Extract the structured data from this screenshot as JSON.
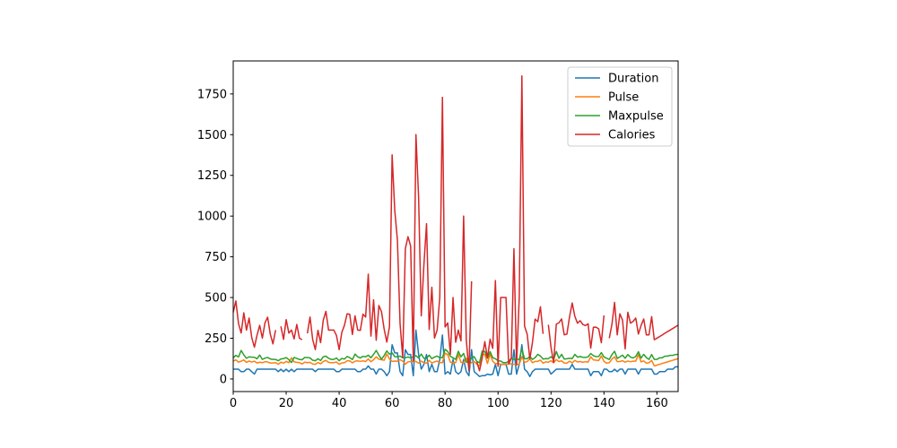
{
  "chart_data": {
    "type": "line",
    "title": "",
    "xlabel": "",
    "ylabel": "",
    "xlim": [
      0,
      168
    ],
    "ylim": [
      -77.3,
      1952.7
    ],
    "xticks": [
      0,
      20,
      40,
      60,
      80,
      100,
      120,
      140,
      160
    ],
    "yticks": [
      0,
      250,
      500,
      750,
      1000,
      1250,
      1500,
      1750
    ],
    "grid": false,
    "legend_placement": "upper-right",
    "series": [
      {
        "name": "Duration",
        "color": "#1f77b4",
        "values": [
          60,
          60,
          60,
          45,
          45,
          60,
          60,
          45,
          30,
          60,
          60,
          60,
          60,
          60,
          60,
          60,
          60,
          45,
          60,
          45,
          60,
          45,
          60,
          45,
          60,
          60,
          60,
          60,
          60,
          60,
          60,
          45,
          60,
          60,
          60,
          60,
          60,
          60,
          60,
          45,
          45,
          60,
          60,
          60,
          60,
          60,
          60,
          45,
          45,
          60,
          60,
          80,
          60,
          60,
          30,
          60,
          60,
          45,
          20,
          45,
          210,
          160,
          160,
          45,
          20,
          180,
          150,
          150,
          20,
          300,
          150,
          60,
          90,
          150,
          45,
          90,
          45,
          45,
          120,
          270,
          30,
          45,
          30,
          120,
          45,
          30,
          45,
          120,
          45,
          20,
          180,
          45,
          30,
          15,
          20,
          20,
          30,
          25,
          30,
          90,
          20,
          90,
          90,
          90,
          30,
          30,
          180,
          30,
          90,
          210,
          60,
          45,
          15,
          45,
          60,
          60,
          60,
          60,
          60,
          60,
          30,
          45,
          60,
          60,
          60,
          60,
          60,
          60,
          90,
          60,
          60,
          60,
          60,
          60,
          60,
          20,
          45,
          45,
          45,
          20,
          60,
          60,
          45,
          45,
          60,
          45,
          60,
          60,
          30,
          60,
          60,
          60,
          60,
          30,
          60,
          60,
          60,
          60,
          60,
          30,
          30,
          45,
          45,
          45,
          60,
          60,
          60,
          75,
          75
        ]
      },
      {
        "name": "Pulse",
        "color": "#ff7f0e",
        "values": [
          110,
          117,
          103,
          109,
          117,
          102,
          110,
          104,
          109,
          98,
          103,
          100,
          106,
          104,
          98,
          98,
          100,
          90,
          103,
          97,
          108,
          100,
          130,
          105,
          102,
          100,
          92,
          103,
          100,
          102,
          92,
          90,
          101,
          93,
          107,
          114,
          102,
          100,
          100,
          104,
          90,
          98,
          100,
          111,
          111,
          99,
          109,
          111,
          108,
          111,
          107,
          123,
          106,
          118,
          136,
          121,
          118,
          115,
          153,
          123,
          108,
          110,
          109,
          118,
          110,
          90,
          105,
          107,
          106,
          108,
          97,
          109,
          100,
          97,
          114,
          98,
          105,
          110,
          100,
          100,
          159,
          149,
          103,
          100,
          100,
          151,
          102,
          100,
          129,
          83,
          101,
          107,
          90,
          80,
          150,
          151,
          95,
          152,
          109,
          93,
          95,
          90,
          90,
          90,
          92,
          93,
          90,
          90,
          90,
          137,
          102,
          107,
          124,
          100,
          108,
          108,
          116,
          97,
          105,
          103,
          112,
          100,
          119,
          107,
          111,
          98,
          97,
          109,
          99,
          114,
          104,
          107,
          103,
          106,
          103,
          136,
          117,
          115,
          113,
          141,
          108,
          97,
          100,
          122,
          136,
          106,
          107,
          112,
          103,
          110,
          106,
          109,
          109,
          150,
          105,
          111,
          97,
          100,
          114,
          80,
          85,
          90,
          95,
          100,
          105,
          110,
          115,
          120,
          125
        ]
      },
      {
        "name": "Maxpulse",
        "color": "#2ca02c",
        "values": [
          130,
          145,
          135,
          175,
          148,
          127,
          136,
          134,
          133,
          124,
          147,
          120,
          128,
          132,
          123,
          120,
          120,
          112,
          123,
          125,
          131,
          119,
          101,
          132,
          126,
          120,
          118,
          132,
          132,
          129,
          115,
          112,
          124,
          113,
          136,
          140,
          127,
          120,
          120,
          129,
          112,
          126,
          122,
          138,
          131,
          119,
          153,
          136,
          129,
          139,
          136,
          146,
          130,
          151,
          175,
          146,
          121,
          144,
          172,
          152,
          160,
          137,
          135,
          141,
          130,
          130,
          135,
          130,
          136,
          143,
          129,
          153,
          127,
          127,
          146,
          125,
          134,
          141,
          130,
          131,
          182,
          169,
          139,
          130,
          120,
          170,
          136,
          157,
          103,
          107,
          127,
          137,
          107,
          100,
          171,
          168,
          128,
          168,
          131,
          124,
          112,
          110,
          100,
          100,
          108,
          128,
          120,
          120,
          120,
          184,
          124,
          124,
          139,
          120,
          131,
          151,
          141,
          122,
          125,
          124,
          137,
          120,
          169,
          127,
          151,
          122,
          124,
          127,
          125,
          151,
          134,
          138,
          133,
          132,
          136,
          156,
          143,
          137,
          138,
          162,
          135,
          127,
          120,
          149,
          170,
          126,
          136,
          146,
          127,
          150,
          134,
          129,
          138,
          167,
          128,
          151,
          131,
          120,
          150,
          120,
          120,
          130,
          130,
          140,
          140,
          145,
          145,
          150,
          150
        ]
      },
      {
        "name": "Calories",
        "color": "#d62728",
        "values": [
          409.1,
          479.0,
          340.0,
          282.4,
          406.0,
          300.0,
          374.0,
          253.3,
          195.1,
          269.0,
          329.3,
          250.7,
          345.3,
          379.3,
          275.0,
          215.2,
          300.0,
          null,
          323.0,
          243.0,
          364.2,
          282.0,
          300.0,
          246.0,
          334.5,
          250.0,
          241.0,
          null,
          280.0,
          380.3,
          243.0,
          180.1,
          299.0,
          223.0,
          361.0,
          415.0,
          300.0,
          300.0,
          300.0,
          266.0,
          180.1,
          286.0,
          329.4,
          400.0,
          397.0,
          273.0,
          387.6,
          300.0,
          298.0,
          397.6,
          380.2,
          643.1,
          263.0,
          486.0,
          238.0,
          450.7,
          413.0,
          305.0,
          226.4,
          321.0,
          1376.0,
          1034.4,
          853.0,
          341.0,
          131.4,
          800.4,
          873.4,
          816.0,
          110.4,
          1500.2,
          1115.0,
          387.6,
          700.0,
          953.2,
          304.0,
          563.2,
          251.0,
          300.0,
          500.4,
          1729.0,
          319.2,
          344.0,
          151.1,
          500.0,
          225.3,
          300.1,
          234.0,
          1000.1,
          242.0,
          50.3,
          600.1,
          null,
          105.3,
          50.5,
          127.4,
          229.4,
          128.2,
          244.2,
          188.2,
          604.1,
          77.7,
          500.0,
          500.0,
          500.4,
          92.7,
          124.0,
          800.3,
          86.2,
          500.3,
          1860.4,
          325.2,
          275.0,
          124.2,
          225.3,
          367.6,
          351.7,
          443.0,
          277.4,
          null,
          332.7,
          193.9,
          100.7,
          336.7,
          344.9,
          368.5,
          271.0,
          275.3,
          382.0,
          466.4,
          384.0,
          342.5,
          357.5,
          335.0,
          327.5,
          339.0,
          189.0,
          317.7,
          318.0,
          308.0,
          222.4,
          390.0,
          null,
          250.4,
          335.4,
          470.2,
          270.8,
          400.0,
          361.9,
          185.0,
          409.4,
          343.0,
          353.2,
          374.0,
          275.8,
          328.0,
          368.5,
          270.4,
          270.4,
          382.8,
          240.9,
          250.4,
          260.4,
          270.0,
          280.9,
          290.8,
          300.0,
          310.2,
          320.4,
          330.4
        ]
      }
    ]
  }
}
